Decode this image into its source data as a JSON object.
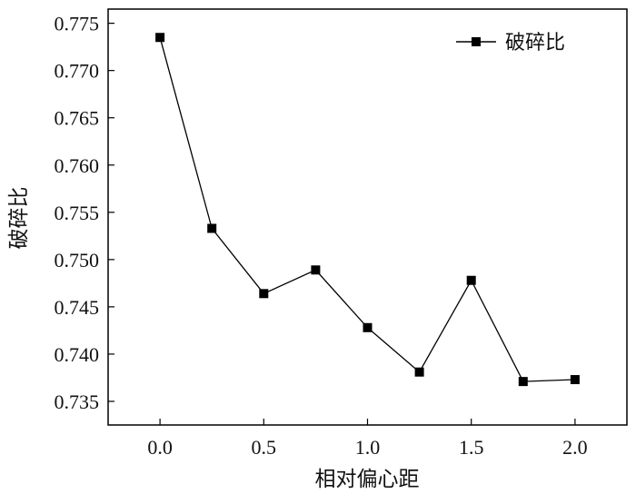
{
  "chart_data": {
    "type": "line",
    "title": "",
    "xlabel": "相对偏心距",
    "ylabel": "破碎比",
    "xlim": [
      -0.25,
      2.25
    ],
    "ylim": [
      0.7325,
      0.7765
    ],
    "xticks": [
      0.0,
      0.5,
      1.0,
      1.5,
      2.0
    ],
    "xtick_labels": [
      "0.0",
      "0.5",
      "1.0",
      "1.5",
      "2.0"
    ],
    "yticks": [
      0.735,
      0.74,
      0.745,
      0.75,
      0.755,
      0.76,
      0.765,
      0.77,
      0.775
    ],
    "ytick_labels": [
      "0.735",
      "0.740",
      "0.745",
      "0.750",
      "0.755",
      "0.760",
      "0.765",
      "0.770",
      "0.775"
    ],
    "grid": false,
    "legend_position": "top-right",
    "series": [
      {
        "name": "破碎比",
        "marker": "square",
        "color": "#000000",
        "x": [
          0.0,
          0.25,
          0.5,
          0.75,
          1.0,
          1.25,
          1.5,
          1.75,
          2.0
        ],
        "y": [
          0.7735,
          0.7533,
          0.7464,
          0.7489,
          0.7428,
          0.7381,
          0.7478,
          0.7371,
          0.7373
        ]
      }
    ]
  }
}
